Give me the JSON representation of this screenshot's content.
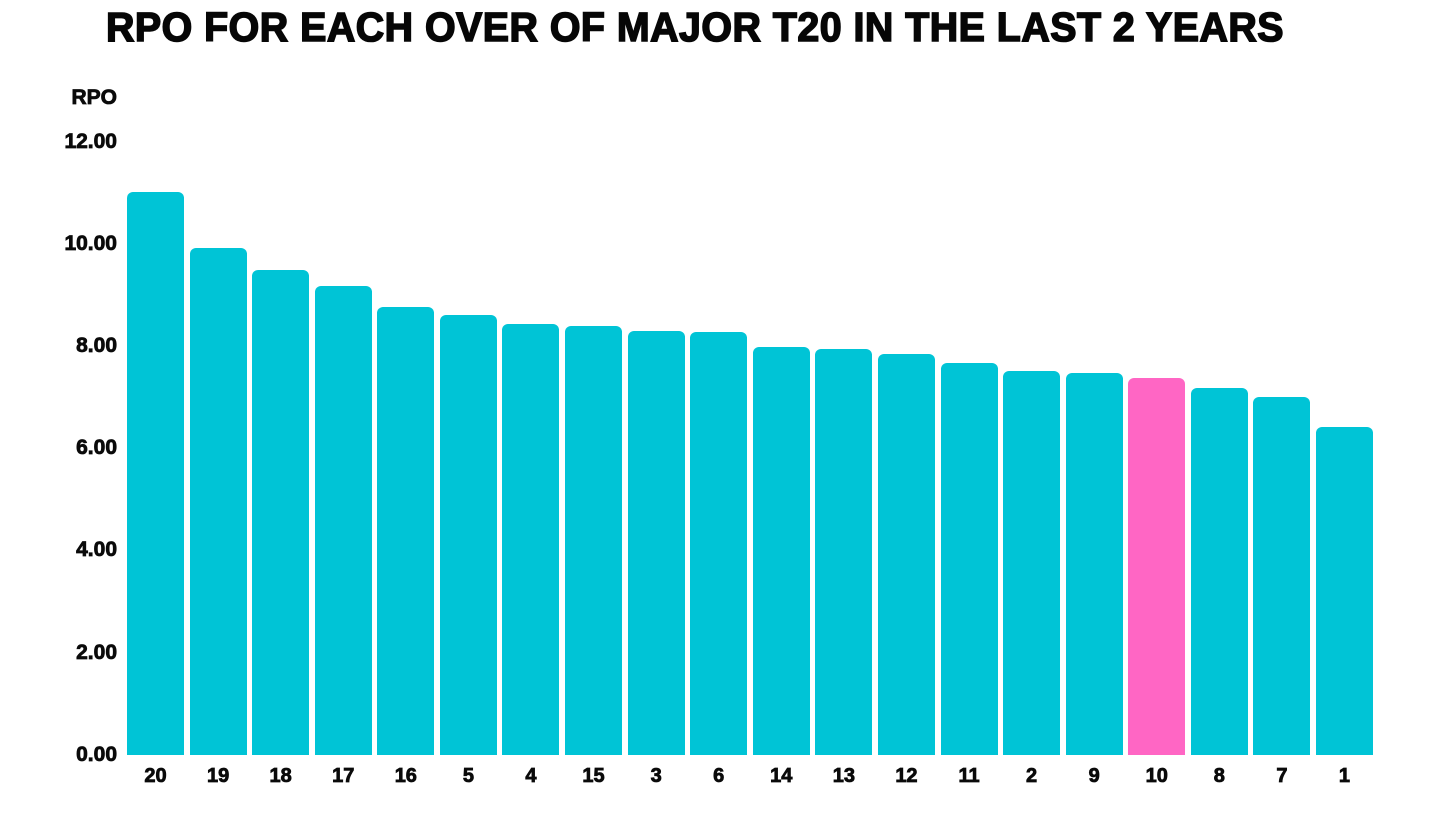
{
  "title": "RPO FOR EACH OVER OF MAJOR T20 IN THE LAST 2 YEARS",
  "chart_data": {
    "type": "bar",
    "title": "RPO FOR EACH OVER OF MAJOR T20 IN THE LAST 2 YEARS",
    "xlabel": "",
    "ylabel": "RPO",
    "categories": [
      "20",
      "19",
      "18",
      "17",
      "16",
      "5",
      "4",
      "15",
      "3",
      "6",
      "14",
      "13",
      "12",
      "11",
      "2",
      "9",
      "10",
      "8",
      "7",
      "1"
    ],
    "values": [
      11.0,
      9.9,
      9.47,
      9.17,
      8.76,
      8.6,
      8.43,
      8.38,
      8.28,
      8.26,
      7.98,
      7.93,
      7.84,
      7.66,
      7.51,
      7.46,
      7.36,
      7.17,
      6.99,
      6.41
    ],
    "ylim": [
      0,
      12
    ],
    "yticks": [
      "12.00",
      "10.00",
      "8.00",
      "6.00",
      "4.00",
      "2.00",
      "0.00"
    ],
    "grid": false,
    "legend": "none",
    "highlight_category": "10",
    "colors": {
      "bar": "#00C4D6",
      "highlight": "#FF66C4",
      "text": "#0A0A0A",
      "background": "#FFFFFF"
    }
  }
}
